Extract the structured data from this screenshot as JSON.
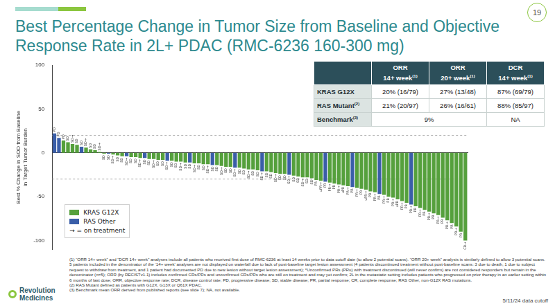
{
  "slide": {
    "page_number": "19",
    "title": [
      "Best Percentage Change in Tumor Size from Baseline and Objective",
      "Response Rate in 2L+ PDAC (RMC-6236 160-300 mg)"
    ],
    "footnotes": [
      "(1) “ORR 14+ week” and “DCR 14+ week” analyses include all patients who received first dose of RMC-6236 at least 14 weeks prior to data cutoff date (to allow 2 potential scans). “ORR 20+ week” analysis is similarly defined to allow 3 potential scans. 5 patients included in the denominator of the ‘14+ week’ analyses are not displayed on waterfall due to lack of post-baseline target lesion assessment (4 patients discontinued treatment without post-baseline scans: 3 due to death, 1 due to subject request to withdraw from treatment, and 1 patient had documented PD due to new lesion without target lesion assessment); *Unconfirmed PRs (PRu) with treatment discontinued (will never confirm) are not considered responders but remain in the denominator (n=5); ORR (by RECISTv1.1) includes confirmed CRs/PRs and unconfirmed CRs/PRs who are still on treatment and may yet confirm; 2L in the metastatic setting includes patients who progressed on prior therapy in an earlier setting within 6 months of last dose; ORR, objective response rate; DCR, disease control rate; PD, progressive disease; SD, stable disease; PR, partial response; CR, complete response; RAS Other, non-G12X RAS mutations.",
      "(2) RAS Mutant defined as patients with G12X, G13X or Q61X PDAC.",
      "(3) Benchmark mean ORR derived from published reports (see slide 7); NA, not available."
    ],
    "logo": [
      "Revolution",
      "Medicines"
    ],
    "date": "5/11/24 data cutoff"
  },
  "table": {
    "columns": [
      {
        "lines": [
          "ORR",
          "14+ week"
        ],
        "note": "(1)"
      },
      {
        "lines": [
          "ORR",
          "20+ week"
        ],
        "note": "(1)"
      },
      {
        "lines": [
          "DCR",
          "14+ week"
        ],
        "note": "(1)"
      }
    ],
    "rows": [
      {
        "label": "KRAS G12X",
        "cells": [
          {
            "text": "20% (16/79)"
          },
          {
            "text": "27% (13/48)"
          },
          {
            "text": "87% (69/79)"
          }
        ]
      },
      {
        "label": "RAS Mutant",
        "note": "(2)",
        "cells": [
          {
            "text": "21% (20/97)"
          },
          {
            "text": "26% (16/61)"
          },
          {
            "text": "88% (85/97)"
          }
        ]
      },
      {
        "label": "Benchmark",
        "note": "(3)",
        "cells": [
          {
            "text": "9%",
            "span": 2
          },
          {
            "text": "NA"
          }
        ]
      }
    ]
  },
  "chart_data": {
    "type": "bar",
    "y_label": [
      "Best % Change in SOD from Baseline",
      "in Target Tumor Burden"
    ],
    "categories": [
      null,
      null,
      null,
      null,
      null,
      null,
      null,
      null,
      null,
      null,
      null,
      null,
      null,
      null,
      null,
      null,
      null,
      null,
      null,
      null,
      null,
      null,
      null,
      null,
      null,
      null,
      null,
      null,
      null,
      null,
      null,
      null,
      null,
      null,
      null,
      null,
      null,
      null,
      null,
      null,
      null,
      null,
      null,
      null,
      null,
      null,
      null,
      null,
      null,
      null,
      null,
      null,
      null,
      null,
      null,
      null,
      null,
      null,
      null,
      null,
      null,
      null,
      null,
      null,
      null,
      null,
      null,
      null,
      null,
      null,
      null,
      null,
      null,
      null,
      null,
      null,
      null,
      null,
      null,
      null,
      null,
      null,
      null,
      null,
      null,
      null,
      null,
      null,
      null,
      null,
      null,
      null
    ],
    "series": [
      {
        "name": "KRAS G12X",
        "color": "#55a03c",
        "values": [
          null,
          null,
          14,
          12,
          10,
          9,
          null,
          6,
          4,
          3,
          1,
          -1,
          null,
          -2,
          -3,
          -4,
          null,
          -5,
          -5,
          -6,
          null,
          -7,
          -7,
          -8,
          -8,
          null,
          -9,
          -10,
          -10,
          -11,
          null,
          -12,
          -12,
          -13,
          -13,
          null,
          -14,
          -15,
          -16,
          -16,
          null,
          -17,
          -18,
          -19,
          -19,
          -20,
          null,
          -21,
          -22,
          -23,
          -24,
          -24,
          null,
          -26,
          -27,
          -28,
          -28,
          -29,
          -31,
          -32,
          null,
          -34,
          -35,
          -36,
          -37,
          -38,
          null,
          -40,
          -41,
          -42,
          -44,
          -45,
          null,
          -48,
          -50,
          -51,
          -53,
          -55,
          -57,
          null,
          -61,
          -63,
          -65,
          -67,
          -69,
          -71,
          -74,
          -77,
          -80,
          -84,
          -90,
          -100
        ],
        "bar_labels": [
          null,
          null,
          "PD",
          "SD",
          "SD→",
          "SD",
          null,
          "SD→",
          "SD",
          "SD",
          "SD→",
          "SD",
          null,
          "SD→",
          "SD",
          "SD",
          null,
          "SD",
          "SD",
          "SD→",
          null,
          "SD",
          "SD→",
          "SD",
          "SD",
          null,
          "SD",
          "SD",
          "SD→",
          "SD",
          null,
          "SD→",
          "SD",
          "SD",
          "SD→",
          null,
          "SD",
          "SD→",
          "SD",
          "SD",
          null,
          "SD",
          "SD",
          "SD→",
          "SD",
          "SD",
          null,
          "SD",
          "SD",
          "SD→",
          "SD",
          "SD",
          null,
          "SD",
          "SD",
          "SD→",
          "SD",
          "SD",
          "PR",
          "uPR→",
          null,
          "PR→",
          "PR",
          "PR→",
          "uPR",
          "PR→",
          null,
          "PR→",
          "PR",
          "uPR→",
          "PR",
          "PR→",
          null,
          "PR→",
          "PR",
          "PR→",
          "uPR",
          "PR→",
          "PR",
          null,
          "PR",
          "PR→",
          "PR",
          "PR→",
          "PR",
          "PR→",
          "PR",
          "PR→",
          "PR",
          "PR→",
          "PR",
          "CR→"
        ]
      },
      {
        "name": "RAS Other",
        "color": "#3a5ea8",
        "values": [
          22,
          17,
          null,
          null,
          null,
          null,
          7,
          null,
          null,
          null,
          null,
          null,
          -1,
          null,
          null,
          null,
          -4,
          null,
          null,
          null,
          -6,
          null,
          null,
          null,
          null,
          -9,
          null,
          null,
          null,
          null,
          -11,
          null,
          null,
          null,
          null,
          -14,
          null,
          null,
          null,
          null,
          -17,
          null,
          null,
          null,
          null,
          null,
          -21,
          null,
          null,
          null,
          null,
          null,
          -25,
          null,
          null,
          null,
          null,
          null,
          null,
          null,
          -33,
          null,
          null,
          null,
          null,
          null,
          -39,
          null,
          null,
          null,
          null,
          null,
          -47,
          null,
          null,
          null,
          null,
          null,
          null,
          -59,
          null,
          null,
          null,
          null,
          null,
          null,
          null,
          null,
          null,
          null,
          null,
          null
        ],
        "bar_labels": [
          "PD",
          "PD",
          null,
          null,
          null,
          null,
          "SD",
          null,
          null,
          null,
          null,
          null,
          "SD",
          null,
          null,
          null,
          "SD→",
          null,
          null,
          null,
          "SD",
          null,
          null,
          null,
          null,
          "SD→",
          null,
          null,
          null,
          null,
          "SD",
          null,
          null,
          null,
          null,
          "SD",
          null,
          null,
          null,
          null,
          "SD→",
          null,
          null,
          null,
          null,
          null,
          "SD→",
          null,
          null,
          null,
          null,
          null,
          "SD→",
          null,
          null,
          null,
          null,
          null,
          null,
          null,
          "PR",
          null,
          null,
          null,
          null,
          null,
          "PR",
          null,
          null,
          null,
          null,
          null,
          "PR",
          null,
          null,
          null,
          null,
          null,
          null,
          "PR→",
          null,
          null,
          null,
          null,
          null,
          null,
          null,
          null,
          null,
          null,
          null,
          null
        ]
      }
    ],
    "reference_lines": [
      20,
      -30
    ],
    "annotations": [
      "→ = on treatment"
    ],
    "ylim": [
      -110,
      100
    ],
    "yticks": [
      -100,
      -50,
      0,
      50,
      100
    ],
    "grid": false,
    "legend": "lower left",
    "tick_labels": "y"
  }
}
